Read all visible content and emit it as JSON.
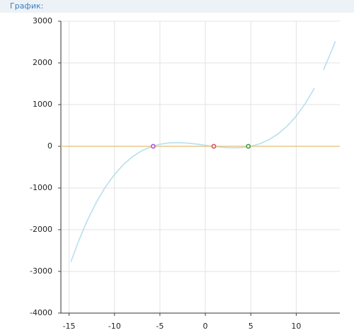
{
  "header": {
    "title": "График:"
  },
  "chart_data": {
    "type": "line",
    "xlim": [
      -15.9,
      14.8
    ],
    "ylim": [
      -4000,
      3000
    ],
    "xticks": [
      -15,
      -10,
      -5,
      0,
      5,
      10
    ],
    "yticks": [
      -4000,
      -3000,
      -2000,
      -1000,
      0,
      1000,
      2000,
      3000
    ],
    "grid": true,
    "series": [
      {
        "color": "#b9dfee",
        "x": [
          -14.8,
          -14,
          -13,
          -12,
          -11,
          -10,
          -9,
          -8,
          -7,
          -6,
          -5,
          -4,
          -3,
          -2,
          -1,
          0,
          1,
          2,
          3,
          4,
          5,
          6,
          7,
          8,
          9,
          10,
          11,
          12,
          12.5,
          13,
          14,
          14.3
        ],
        "values": [
          -2773,
          -2299,
          -1782,
          -1343,
          -976,
          -675,
          -434,
          -247,
          -108,
          -11,
          50,
          81,
          88,
          77,
          54,
          25,
          -4,
          -27,
          -38,
          -31,
          0,
          61,
          158,
          297,
          484,
          725,
          1026,
          1393,
          null,
          1832,
          2349,
          2520
        ]
      },
      {
        "color": "#e8c98a",
        "x": [
          -15.9,
          14.8
        ],
        "values": [
          0,
          0
        ]
      }
    ],
    "points": {
      "x": [
        -5.74,
        0.93,
        4.73
      ],
      "values": [
        0,
        0,
        0
      ],
      "colors": [
        "#a84fd8",
        "#d9534f",
        "#3f9a44"
      ]
    }
  }
}
